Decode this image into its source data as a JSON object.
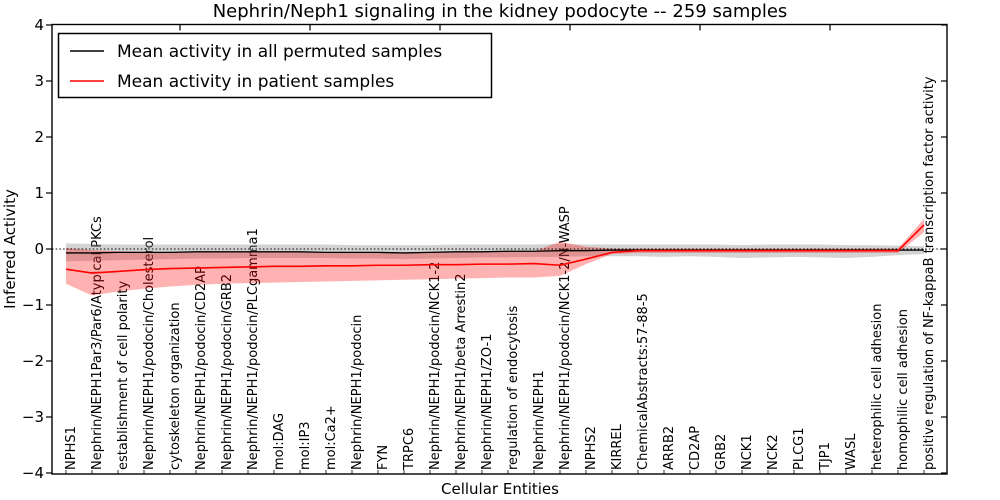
{
  "title": "Nephrin/Neph1 signaling in the kidney podocyte -- 259 samples",
  "colors": {
    "permuted_line": "#000000",
    "patient_line": "#ff0000",
    "permuted_band": "rgba(128,128,128,0.35)",
    "patient_band": "rgba(255,0,0,0.30)",
    "axis": "#000000",
    "background": "#ffffff"
  },
  "chart_data": {
    "type": "line",
    "title": "Nephrin/Neph1 signaling in the kidney podocyte -- 259 samples",
    "xlabel": "Cellular Entities",
    "ylabel": "Inferred Activity",
    "ylim": [
      -4,
      4
    ],
    "ytick_values": [
      -4,
      -3,
      -2,
      -1,
      0,
      1,
      2,
      3,
      4
    ],
    "ytick_labels": [
      "−4",
      "−3",
      "−2",
      "−1",
      "0",
      "1",
      "2",
      "3",
      "4"
    ],
    "zero_reference_line": 0,
    "grid": false,
    "legend_position": "upper left",
    "categories": [
      "NPHS1",
      "Nephrin/NEPH1Par3/Par6/Atypical PKCs",
      "establishment of cell polarity",
      "Nephrin/NEPH1/podocin/Cholesterol",
      "cytoskeleton organization",
      "Nephrin/NEPH1/podocin/CD2AP",
      "Nephrin/NEPH1/podocin/GRB2",
      "Nephrin/NEPH1/podocin/PLCgamma1",
      "mol:DAG",
      "mol:IP3",
      "mol:Ca2+",
      "Nephrin/NEPH1/podocin",
      "FYN",
      "TRPC6",
      "Nephrin/NEPH1/podocin/NCK1-2",
      "Nephrin/NEPH1/beta Arrestin2",
      "Nephrin/NEPH1/ZO-1",
      "regulation of endocytosis",
      "Nephrin/NEPH1",
      "Nephrin/NEPH1/podocin/NCK1-2/N-WASP",
      "NPHS2",
      "KIRREL",
      "ChemicalAbstracts:57-88-5",
      "ARRB2",
      "CD2AP",
      "GRB2",
      "NCK1",
      "NCK2",
      "PLCG1",
      "TJP1",
      "WASL",
      "heterophilic cell adhesion",
      "homophilic cell adhesion",
      "positive regulation of NF-kappaB transcription factor activity"
    ],
    "series": [
      {
        "name": "Mean activity in all permuted samples",
        "color": "#000000",
        "band_color": "rgba(128,128,128,0.35)",
        "values": [
          -0.07,
          -0.07,
          -0.06,
          -0.06,
          -0.06,
          -0.05,
          -0.05,
          -0.05,
          -0.05,
          -0.05,
          -0.06,
          -0.06,
          -0.06,
          -0.07,
          -0.06,
          -0.05,
          -0.05,
          -0.04,
          -0.04,
          -0.03,
          -0.03,
          -0.02,
          -0.02,
          -0.02,
          -0.02,
          -0.02,
          -0.02,
          -0.02,
          -0.02,
          -0.02,
          -0.02,
          -0.02,
          -0.02,
          -0.02
        ],
        "band_upper": [
          0.1,
          0.09,
          0.08,
          0.08,
          0.08,
          0.08,
          0.08,
          0.08,
          0.08,
          0.08,
          0.08,
          0.07,
          0.07,
          0.07,
          0.07,
          0.08,
          0.08,
          0.08,
          0.08,
          0.09,
          0.08,
          0.08,
          0.08,
          0.08,
          0.08,
          0.08,
          0.07,
          0.08,
          0.08,
          0.08,
          0.07,
          0.07,
          0.06,
          0.05
        ],
        "band_lower": [
          -0.22,
          -0.21,
          -0.2,
          -0.19,
          -0.18,
          -0.17,
          -0.17,
          -0.16,
          -0.16,
          -0.16,
          -0.16,
          -0.17,
          -0.17,
          -0.18,
          -0.17,
          -0.16,
          -0.15,
          -0.15,
          -0.14,
          -0.14,
          -0.13,
          -0.13,
          -0.13,
          -0.14,
          -0.13,
          -0.14,
          -0.16,
          -0.15,
          -0.14,
          -0.15,
          -0.16,
          -0.14,
          -0.11,
          -0.09
        ]
      },
      {
        "name": "Mean activity in patient samples",
        "color": "#ff0000",
        "band_color": "rgba(255,0,0,0.30)",
        "values": [
          -0.36,
          -0.43,
          -0.4,
          -0.37,
          -0.35,
          -0.34,
          -0.33,
          -0.32,
          -0.31,
          -0.31,
          -0.3,
          -0.3,
          -0.29,
          -0.29,
          -0.28,
          -0.28,
          -0.27,
          -0.27,
          -0.26,
          -0.29,
          -0.18,
          -0.06,
          -0.03,
          -0.03,
          -0.03,
          -0.03,
          -0.03,
          -0.03,
          -0.03,
          -0.03,
          -0.03,
          -0.03,
          -0.03,
          0.43
        ],
        "band_upper": [
          0.02,
          -0.02,
          -0.04,
          -0.05,
          -0.06,
          -0.06,
          -0.06,
          -0.06,
          -0.06,
          -0.06,
          -0.06,
          -0.06,
          -0.06,
          -0.06,
          -0.05,
          -0.05,
          -0.05,
          -0.04,
          -0.04,
          0.13,
          0.04,
          0.01,
          0.01,
          0.01,
          0.01,
          0.01,
          0.01,
          0.01,
          0.01,
          0.01,
          0.01,
          0.01,
          0.01,
          0.54
        ],
        "band_lower": [
          -0.62,
          -0.83,
          -0.76,
          -0.71,
          -0.67,
          -0.64,
          -0.62,
          -0.61,
          -0.6,
          -0.59,
          -0.58,
          -0.57,
          -0.56,
          -0.55,
          -0.54,
          -0.53,
          -0.52,
          -0.51,
          -0.51,
          -0.48,
          -0.27,
          -0.09,
          -0.07,
          -0.07,
          -0.07,
          -0.07,
          -0.07,
          -0.07,
          -0.07,
          -0.07,
          -0.07,
          -0.07,
          -0.07,
          0.3
        ]
      }
    ]
  },
  "legend": {
    "entries": [
      {
        "label": "Mean activity in all permuted samples",
        "color": "#000000"
      },
      {
        "label": "Mean activity in patient samples",
        "color": "#ff0000"
      }
    ]
  }
}
